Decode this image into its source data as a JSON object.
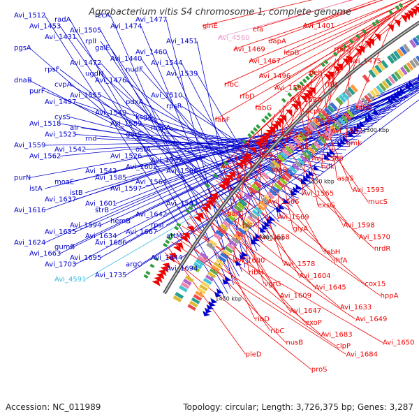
{
  "title": "Agrobacterium vitis S4 chromosome 1, complete genome",
  "footer": {
    "accession": "Accession: NC_011989",
    "summary": "Topology: circular; Length: 3,726,375 bp; Genes: 3,287"
  },
  "colors": {
    "left_genes": "#0000cc",
    "right_genes": "#ee0000",
    "rna_gene_cyan": "#33bbdd",
    "rna_gene_pink": "#ee99cc",
    "backbone": "#777777"
  },
  "scale_labels": [
    "1200 kbp",
    "1250 kbp",
    "1300 kbp",
    "1350 kbp",
    "1400 kbp",
    "1450 kbp"
  ],
  "left_labels": [
    "Avi_1512",
    "radA",
    "rzcA",
    "Avi_1477",
    "Avi_1453",
    "Avi_1505",
    "Avi_1474",
    "Avi_1451",
    "Avi_1431",
    "rplI",
    "galE",
    "Avi_1460",
    "pgsA",
    "Avi_1472",
    "Avi_1440",
    "Avi_1544",
    "rpsF",
    "ugdH",
    "nudF",
    "Avi_1539",
    "dnaB",
    "cvpA",
    "Avi_1476",
    "Avi_1510",
    "purF",
    "Avi_1555",
    "pdxA",
    "rpsR",
    "Avi_1497",
    "cysS",
    "Avi_1549",
    "ksgA",
    "Avi_1518",
    "alr",
    "Avi_1589",
    "mcpA",
    "Avi_1523",
    "rnd",
    "garS",
    "ostA",
    "Avi_1559",
    "Avi_1542",
    "Avi_1526",
    "Avi_1587",
    "Avi_1562",
    "Avi_1543",
    "Avi_1602",
    "Avi_1586",
    "purN",
    "moaE",
    "Avi_1585",
    "Avi_1564",
    "istA",
    "istB",
    "Avi_1597",
    "Avi_1583",
    "Avi_1637",
    "Avi_1601",
    "strB",
    "Avi_1642",
    "Avi_1616",
    "Avi_1594",
    "hemB",
    "rpsI",
    "Avi_1655",
    "Avi_1634",
    "Avi_1667",
    "attM",
    "Avi_1624",
    "gumB",
    "Avi_1686",
    "Avi_1644",
    "Avi_1663",
    "Avi_1695",
    "argC",
    "Avi_1694",
    "Avi_1703",
    "Avi_4591",
    "Avi_1735"
  ],
  "right_labels": [
    "glnE",
    "cfa",
    "Avi_1401",
    "Avi_4560",
    "dapA",
    "rpoZ",
    "Avi_1469",
    "lepB",
    "Avi_1475",
    "Avi_1467",
    "Avi_1496",
    "peh",
    "rfbC",
    "Avi_1509",
    "rffB",
    "rfbD",
    "Avi_1536",
    "fabD",
    "fabG",
    "acpP",
    "pepA",
    "fabF",
    "Avi_1546",
    "Avi_1532",
    "mntH",
    "ligE",
    "gmk",
    "ppk",
    "Avi_1568",
    "ndk",
    "Avi_1577",
    "ropB",
    "aspS",
    "ppx",
    "Avi_1565",
    "Avi_1593",
    "Avi_1566",
    "exsG",
    "mucS",
    "parC",
    "Avi_1569",
    "Avi_1598",
    "plsX",
    "glyA",
    "Avi_1570",
    "Avi_1658",
    "fabH",
    "nrdR",
    "Avi_1600",
    "Avi_1578",
    "ihfA",
    "ribH",
    "Avi_1604",
    "cox15",
    "vgrG",
    "Avi_1645",
    "hppA",
    "Avi_1609",
    "Avi_1647",
    "Avi_1633",
    "ribD",
    "exoP",
    "Avi_1649",
    "ribC",
    "Avi_1683",
    "Avi_1650",
    "nusB",
    "clpP",
    "Avi_1684",
    "pleD",
    "proS"
  ]
}
